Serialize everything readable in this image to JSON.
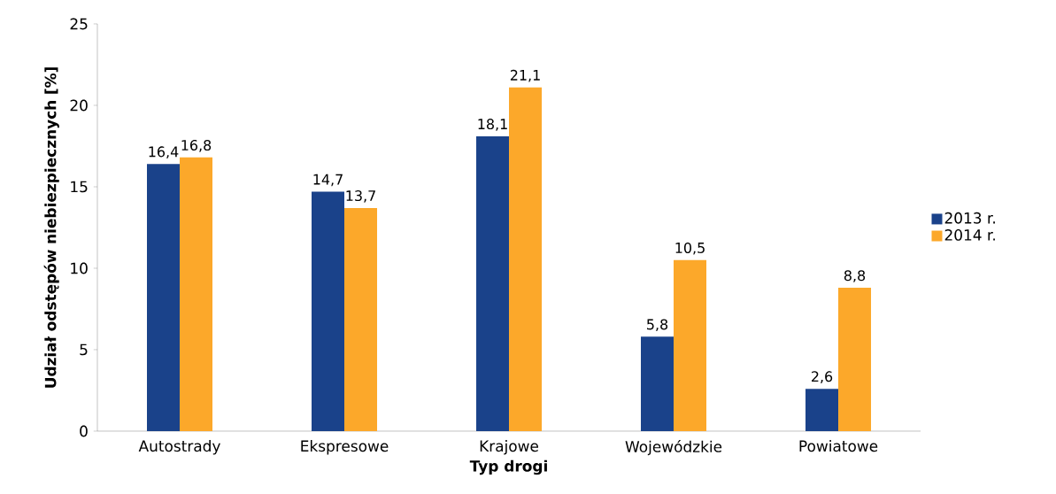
{
  "chart_data": {
    "type": "bar",
    "xlabel": "Typ drogi",
    "ylabel": "Udział odstępów niebiezpiecznych [%]",
    "categories": [
      "Autostrady",
      "Ekspresowe",
      "Krajowe",
      "Wojewódzkie",
      "Powiatowe"
    ],
    "series": [
      {
        "name": "2013 r.",
        "color": "#1a428a",
        "values": [
          16.4,
          14.7,
          18.1,
          5.8,
          2.6
        ],
        "value_labels": [
          "16,4",
          "14,7",
          "18,1",
          "5,8",
          "2,6"
        ]
      },
      {
        "name": "2014 r.",
        "color": "#fca82a",
        "values": [
          16.8,
          13.7,
          21.1,
          10.5,
          8.8
        ],
        "value_labels": [
          "16,8",
          "13,7",
          "21,1",
          "10,5",
          "8,8"
        ]
      }
    ],
    "ylim": [
      0,
      25
    ],
    "yticks": [
      0,
      5,
      10,
      15,
      20,
      25
    ],
    "grid": false,
    "legend": "right"
  }
}
